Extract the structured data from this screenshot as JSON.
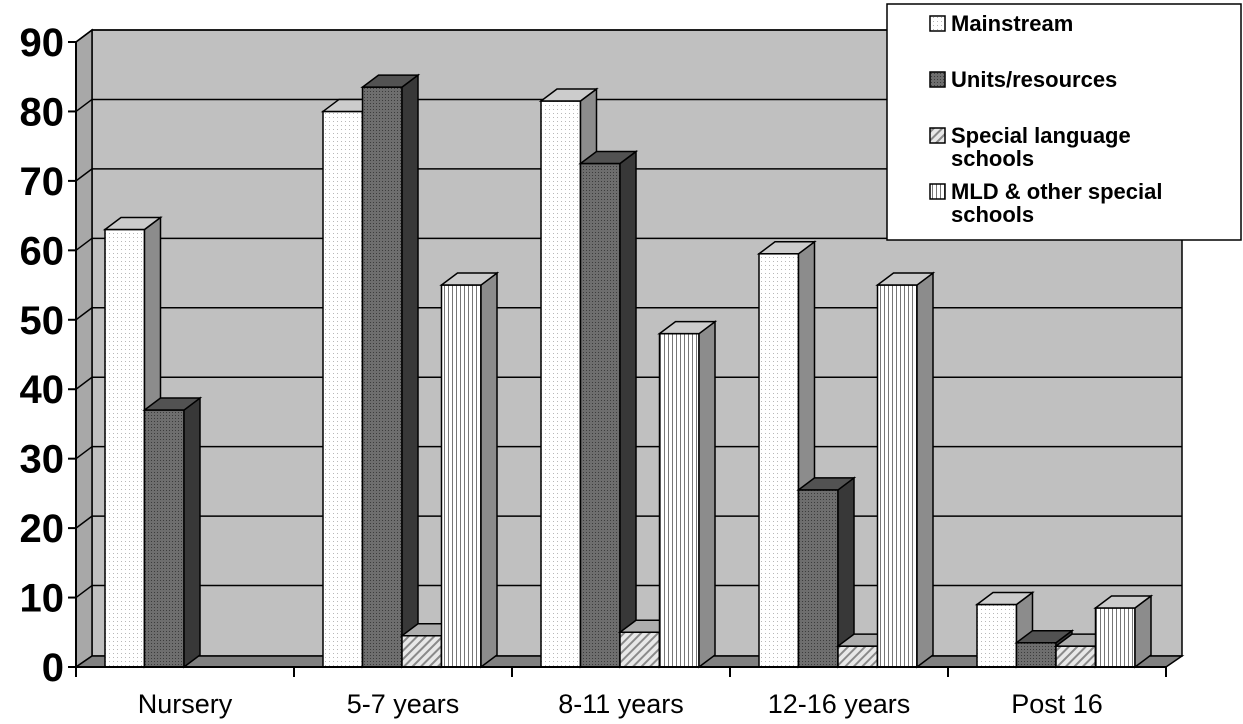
{
  "chart_data": {
    "type": "bar",
    "title": "",
    "xlabel": "",
    "ylabel": "",
    "ylim": [
      0,
      90
    ],
    "yticks": [
      0,
      10,
      20,
      30,
      40,
      50,
      60,
      70,
      80,
      90
    ],
    "grid": true,
    "legend_position": "top-right",
    "categories": [
      "Nursery",
      "5-7 years",
      "8-11 years",
      "12-16 years",
      "Post 16"
    ],
    "series": [
      {
        "name": "Mainstream",
        "values": [
          63,
          80,
          81.5,
          59.5,
          9
        ],
        "color": "#ffffff",
        "pattern": "dots-fine"
      },
      {
        "name": "Units/resources",
        "values": [
          37,
          83.5,
          72.5,
          25.5,
          3.5
        ],
        "color": "#666666",
        "pattern": "dots-dark"
      },
      {
        "name": "Special language schools",
        "values": [
          0,
          4.5,
          5,
          3,
          3
        ],
        "color": "#d8d8d8",
        "pattern": "diagonal"
      },
      {
        "name": "MLD & other special schools",
        "values": [
          0,
          55,
          48,
          55,
          8.5
        ],
        "color": "#ffffff",
        "pattern": "vertical"
      }
    ],
    "legend_lines": [
      [
        "Mainstream"
      ],
      [
        "Units/resources"
      ],
      [
        "Special language",
        "schools"
      ],
      [
        "MLD & other special",
        "schools"
      ]
    ]
  }
}
